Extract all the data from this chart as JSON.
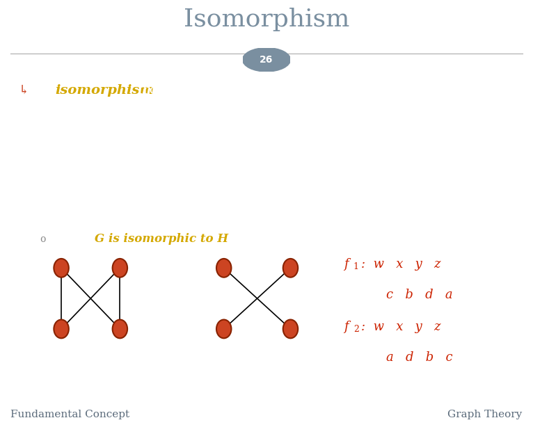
{
  "title": "Isomorphism",
  "slide_num": "26",
  "bg_color": "#adb9c7",
  "header_color": "#ffffff",
  "footer_color": "#8a9aaa",
  "title_color": "#7a8fa0",
  "slide_num_bg": "#7a8fa0",
  "text_color": "#ffffff",
  "highlight_color": "#d4a800",
  "red_color": "#cc2200",
  "footer_text_color": "#5a6a7a",
  "node_color": "#cc4422",
  "node_edge_color": "#882200",
  "footer_left": "Fundamental Concept",
  "footer_right": "Graph Theory",
  "arrow_right": "↳",
  "elem_symbol": "∈",
  "arrow_symbol": "→",
  "cong_symbol": "≅"
}
